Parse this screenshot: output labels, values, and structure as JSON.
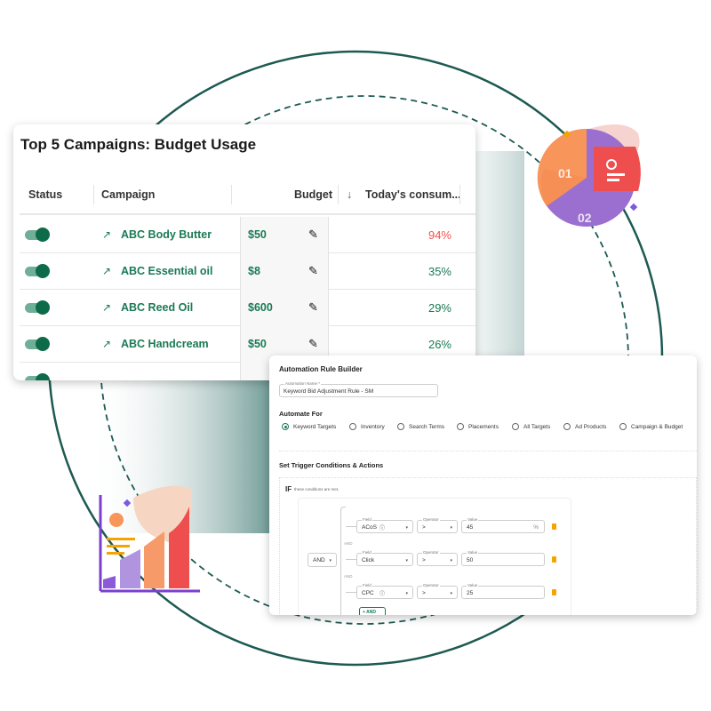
{
  "campaigns_card": {
    "title": "Top 5 Campaigns: Budget Usage",
    "columns": [
      "Status",
      "Campaign",
      "Budget",
      "Today's consum..."
    ],
    "sort_icon": "arrow-down-icon",
    "rows": [
      {
        "campaign": "ABC Body Butter",
        "budget": "$50",
        "consumption": "94%",
        "enabled": true
      },
      {
        "campaign": "ABC Essential oil",
        "budget": "$8",
        "consumption": "35%",
        "enabled": true
      },
      {
        "campaign": "ABC Reed Oil",
        "budget": "$600",
        "consumption": "29%",
        "enabled": true
      },
      {
        "campaign": "ABC Handcream",
        "budget": "$50",
        "consumption": "26%",
        "enabled": true
      }
    ],
    "colors": {
      "accent": "#1a7a55",
      "high": "#ef5350"
    }
  },
  "rule_builder": {
    "title": "Automation Rule Builder",
    "name_label": "Automation Name *",
    "name_value": "Keyword Bid Adjustment Rule - SM",
    "automate_for_title": "Automate For",
    "options": [
      "Keyword Targets",
      "Inventory",
      "Search Terms",
      "Placements",
      "All Targets",
      "Ad Products",
      "Campaign & Budget"
    ],
    "selected_option": "Keyword Targets",
    "trigger_title": "Set Trigger Conditions & Actions",
    "if_label": "IF",
    "if_sub": "these conditions are met,",
    "group_operator": "AND",
    "joiner": "AND",
    "field_label": "Field",
    "operator_label": "Operator",
    "value_label": "Value",
    "conditions": [
      {
        "field": "ACoS",
        "operator": ">",
        "value": "45",
        "unit": "%"
      },
      {
        "field": "Click",
        "operator": ">",
        "value": "50",
        "unit": ""
      },
      {
        "field": "CPC",
        "operator": ">",
        "value": "25",
        "unit": ""
      }
    ],
    "add_button": "+ AND"
  },
  "illustration": {
    "pie_labels": [
      "01",
      "02"
    ]
  }
}
